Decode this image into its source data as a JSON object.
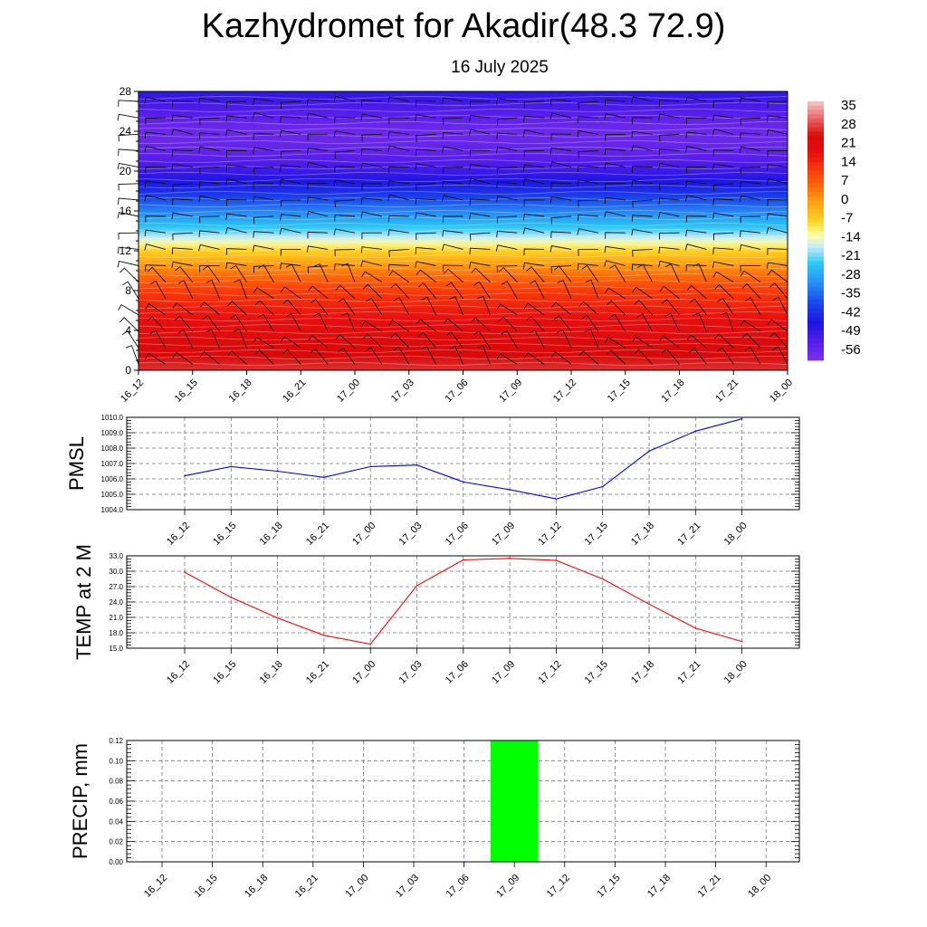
{
  "header": {
    "title": "Kazhydromet for Akadir(48.3 72.9)",
    "subtitle": "16 July 2025"
  },
  "time_labels": [
    "16_12",
    "16_15",
    "16_18",
    "16_21",
    "17_00",
    "17_03",
    "17_06",
    "17_09",
    "17_12",
    "17_15",
    "17_18",
    "17_21",
    "18_00"
  ],
  "colors": {
    "pmsl_line": "#0000ff",
    "temp_line": "#ff0000",
    "precip_bar": "#00ff00"
  },
  "chart_data": [
    {
      "type": "heatmap",
      "title": "",
      "x": [
        "16_12",
        "16_15",
        "16_18",
        "16_21",
        "17_00",
        "17_03",
        "17_06",
        "17_09",
        "17_12",
        "17_15",
        "17_18",
        "17_21",
        "18_00"
      ],
      "yticks": [
        0,
        4,
        8,
        12,
        16,
        20,
        24,
        28
      ],
      "ylim": [
        0,
        28
      ],
      "colorbar": {
        "labels": [
          "35",
          "28",
          "21",
          "14",
          "7",
          "0",
          "-7",
          "-14",
          "-21",
          "-28",
          "-35",
          "-42",
          "-49",
          "-56"
        ],
        "range": [
          -63,
          42
        ],
        "placement": "right"
      },
      "profile": {
        "y": [
          0,
          2,
          4,
          6,
          8,
          10,
          12,
          13,
          14,
          16,
          18,
          20,
          22,
          24,
          26,
          28
        ],
        "temperature": [
          31,
          27,
          23,
          19,
          14,
          5,
          -6,
          -14,
          -22,
          -33,
          -44,
          -52,
          -58,
          -60,
          -55,
          -50
        ]
      },
      "overlay": "wind barbs"
    },
    {
      "type": "line",
      "ylabel": "PMSL",
      "x": [
        "16_12",
        "16_15",
        "16_18",
        "16_21",
        "17_00",
        "17_03",
        "17_06",
        "17_09",
        "17_12",
        "17_15",
        "17_18",
        "17_21",
        "18_00"
      ],
      "yticks": [
        "1004.0",
        "1005.0",
        "1006.0",
        "1007.0",
        "1008.0",
        "1009.0",
        "1010.0"
      ],
      "ylim": [
        1004.0,
        1010.0
      ],
      "grid": true,
      "series": [
        {
          "values": [
            1006.2,
            1006.8,
            1006.5,
            1006.1,
            1006.8,
            1006.9,
            1005.8,
            1005.3,
            1004.7,
            1005.5,
            1007.8,
            1009.1,
            1009.9
          ]
        }
      ]
    },
    {
      "type": "line",
      "ylabel": "TEMP at 2 M",
      "x": [
        "16_12",
        "16_15",
        "16_18",
        "16_21",
        "17_00",
        "17_03",
        "17_06",
        "17_09",
        "17_12",
        "17_15",
        "17_18",
        "17_21",
        "18_00"
      ],
      "yticks": [
        "15.0",
        "18.0",
        "21.0",
        "24.0",
        "27.0",
        "30.0",
        "33.0"
      ],
      "ylim": [
        15.0,
        33.0
      ],
      "grid": true,
      "series": [
        {
          "values": [
            29.8,
            24.9,
            20.9,
            17.5,
            15.8,
            27.2,
            32.2,
            32.5,
            32.1,
            28.5,
            23.6,
            18.9,
            16.3
          ]
        }
      ]
    },
    {
      "type": "bar",
      "ylabel": "PRECIP, mm",
      "x": [
        "16_12",
        "16_15",
        "16_18",
        "16_21",
        "17_00",
        "17_03",
        "17_06",
        "17_09",
        "17_12",
        "17_15",
        "17_18",
        "17_21",
        "18_00"
      ],
      "yticks": [
        "0.00",
        "0.02",
        "0.04",
        "0.06",
        "0.08",
        "0.10",
        "0.12"
      ],
      "ylim": [
        0.0,
        0.12
      ],
      "grid": true,
      "series": [
        {
          "values": [
            0,
            0,
            0,
            0,
            0,
            0,
            0,
            0.12,
            0,
            0,
            0,
            0,
            0
          ]
        }
      ]
    }
  ]
}
